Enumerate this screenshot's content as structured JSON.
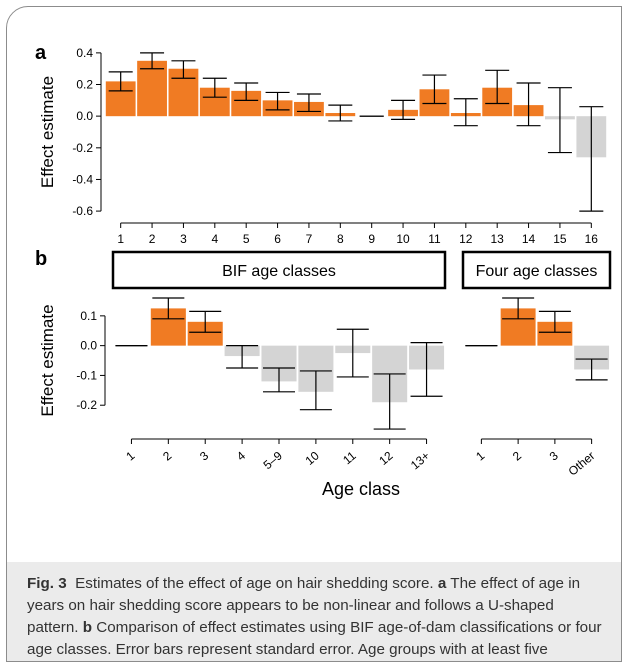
{
  "chart_data": [
    {
      "panel": "a",
      "type": "bar",
      "ylabel": "Effect estimate",
      "ylim": [
        -0.65,
        0.45
      ],
      "yticks": [
        0.4,
        0.2,
        0.0,
        -0.2,
        -0.4,
        -0.6
      ],
      "ytick_labels": [
        "0.4",
        "0.2",
        "0.0",
        "-0.2",
        "-0.4",
        "-0.6"
      ],
      "categories": [
        "1",
        "2",
        "3",
        "4",
        "5",
        "6",
        "7",
        "8",
        "9",
        "10",
        "11",
        "12",
        "13",
        "14",
        "15",
        "16"
      ],
      "values": [
        0.22,
        0.35,
        0.3,
        0.18,
        0.16,
        0.1,
        0.09,
        0.02,
        0.0,
        0.04,
        0.17,
        0.02,
        0.18,
        0.07,
        -0.02,
        -0.26
      ],
      "error_low": [
        0.16,
        0.3,
        0.24,
        0.12,
        0.1,
        0.04,
        0.03,
        -0.03,
        0.0,
        -0.02,
        0.08,
        -0.06,
        0.08,
        -0.06,
        -0.23,
        -0.6
      ],
      "error_high": [
        0.28,
        0.4,
        0.35,
        0.24,
        0.21,
        0.15,
        0.14,
        0.07,
        0.0,
        0.1,
        0.26,
        0.11,
        0.29,
        0.21,
        0.18,
        0.06
      ],
      "significant": [
        true,
        true,
        true,
        true,
        true,
        true,
        true,
        true,
        false,
        true,
        true,
        true,
        true,
        true,
        false,
        false
      ],
      "grid": false
    },
    {
      "panel": "b",
      "type": "bar",
      "ylabel": "Effect estimate",
      "xlabel": "Age class",
      "ylim": [
        -0.3,
        0.17
      ],
      "yticks": [
        0.1,
        0.0,
        -0.1,
        -0.2
      ],
      "ytick_labels": [
        "0.1",
        "0.0",
        "-0.1",
        "-0.2"
      ],
      "grid": false,
      "facets": [
        {
          "title": "BIF age classes",
          "categories": [
            "1",
            "2",
            "3",
            "4",
            "5–9",
            "10",
            "11",
            "12",
            "13+"
          ],
          "values": [
            0.0,
            0.125,
            0.08,
            -0.035,
            -0.12,
            -0.155,
            -0.025,
            -0.19,
            -0.08
          ],
          "error_low": [
            0.0,
            0.09,
            0.045,
            -0.075,
            -0.155,
            -0.215,
            -0.105,
            -0.28,
            -0.17
          ],
          "error_high": [
            0.0,
            0.16,
            0.115,
            0.0,
            -0.075,
            -0.085,
            0.055,
            -0.095,
            0.01
          ],
          "significant": [
            false,
            true,
            true,
            false,
            false,
            false,
            false,
            false,
            false
          ]
        },
        {
          "title": "Four age classes",
          "categories": [
            "1",
            "2",
            "3",
            "Other"
          ],
          "values": [
            0.0,
            0.125,
            0.08,
            -0.08
          ],
          "error_low": [
            0.0,
            0.09,
            0.045,
            -0.115
          ],
          "error_high": [
            0.0,
            0.16,
            0.115,
            -0.045
          ],
          "significant": [
            false,
            true,
            true,
            false
          ]
        }
      ]
    }
  ],
  "style": {
    "significant_color": "#f07b23",
    "nonsignificant_color": "#d4d4d4",
    "caption_background": "#ebebeb",
    "panel_a_label": "a",
    "panel_b_label": "b"
  },
  "caption": {
    "label": "Fig. 3",
    "title": "Estimates of the effect of age on hair shedding score.",
    "part_a_label": "a",
    "part_a_text": "The effect of age in years on hair shedding score appears to be non-linear and follows a U-shaped pattern.",
    "part_b_label": "b",
    "part_b_text": "Comparison of effect estimates using BIF age-of-dam classifications or four age classes. Error bars represent standard error. Age groups with at least five observations are plotted"
  }
}
